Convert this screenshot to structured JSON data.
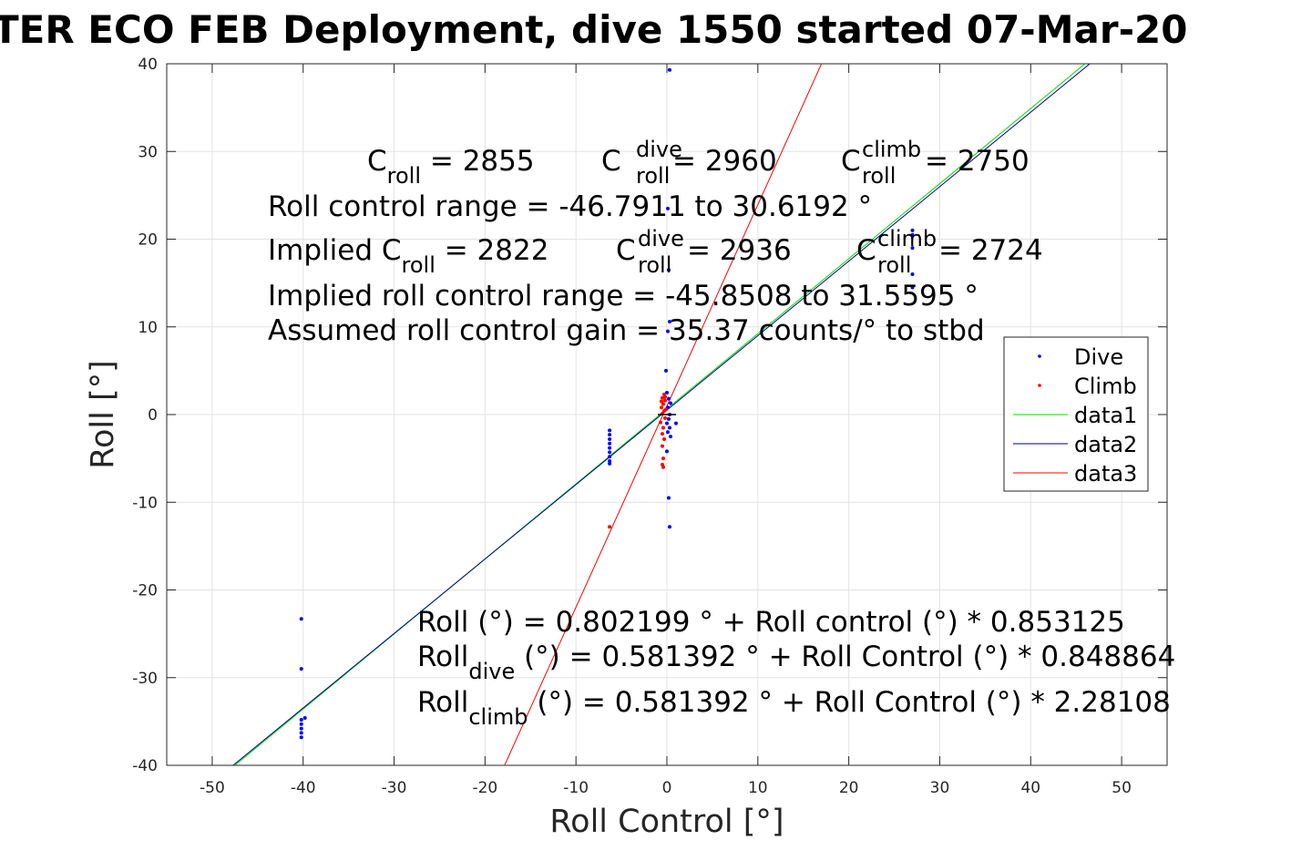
{
  "chart_data": {
    "type": "scatter",
    "title": "TER ECO FEB Deployment, dive 1550 started 07-Mar-20",
    "xlabel": "Roll Control [°]",
    "ylabel": "Roll [°]",
    "xlim": [
      -55,
      55
    ],
    "ylim": [
      -40,
      40
    ],
    "xticks": [
      -50,
      -40,
      -30,
      -20,
      -10,
      0,
      10,
      20,
      30,
      40,
      50
    ],
    "yticks": [
      -40,
      -30,
      -20,
      -10,
      0,
      10,
      20,
      30,
      40
    ],
    "grid": true,
    "legend_position": "right",
    "series": [
      {
        "name": "Dive",
        "kind": "points",
        "color": "#0000ff",
        "points": [
          [
            0.3,
            39.3
          ],
          [
            0.1,
            23.5
          ],
          [
            0.2,
            16.5
          ],
          [
            0.3,
            10.6
          ],
          [
            0.1,
            9.5
          ],
          [
            -0.1,
            5.0
          ],
          [
            0.0,
            2.5
          ],
          [
            0.2,
            1.8
          ],
          [
            0.4,
            1.3
          ],
          [
            0.1,
            0.8
          ],
          [
            0.3,
            0.0
          ],
          [
            0.2,
            -0.5
          ],
          [
            0.0,
            -1.0
          ],
          [
            0.3,
            -1.5
          ],
          [
            0.1,
            -2.0
          ],
          [
            0.4,
            -2.5
          ],
          [
            1.0,
            -1.0
          ],
          [
            0.0,
            -4.2
          ],
          [
            0.2,
            -9.5
          ],
          [
            0.3,
            -12.8
          ],
          [
            -6.3,
            -1.8
          ],
          [
            -6.3,
            -2.3
          ],
          [
            -6.3,
            -2.8
          ],
          [
            -6.3,
            -3.3
          ],
          [
            -6.3,
            -3.8
          ],
          [
            -6.3,
            -4.3
          ],
          [
            -6.3,
            -4.8
          ],
          [
            -6.3,
            -5.3
          ],
          [
            -6.3,
            -5.6
          ],
          [
            27.0,
            21.0
          ],
          [
            27.0,
            20.5
          ],
          [
            27.0,
            19.0
          ],
          [
            27.0,
            16.0
          ],
          [
            27.0,
            14.5
          ],
          [
            -40.2,
            -23.3
          ],
          [
            -40.2,
            -29.0
          ],
          [
            -40.2,
            -34.8
          ],
          [
            -40.2,
            -35.3
          ],
          [
            -40.2,
            -35.8
          ],
          [
            -40.2,
            -36.3
          ],
          [
            -40.2,
            -36.8
          ],
          [
            -39.8,
            -34.6
          ]
        ]
      },
      {
        "name": "Climb",
        "kind": "points",
        "color": "#ff0000",
        "points": [
          [
            -0.3,
            2.3
          ],
          [
            -0.5,
            1.9
          ],
          [
            -0.2,
            1.6
          ],
          [
            -0.4,
            1.2
          ],
          [
            -0.6,
            0.8
          ],
          [
            -0.3,
            0.4
          ],
          [
            -0.5,
            0.1
          ],
          [
            -0.2,
            -0.4
          ],
          [
            -0.7,
            -0.9
          ],
          [
            -0.4,
            -1.5
          ],
          [
            -0.5,
            -2.2
          ],
          [
            -0.3,
            -2.8
          ],
          [
            -0.5,
            -3.6
          ],
          [
            -0.4,
            -5.0
          ],
          [
            -0.5,
            -5.7
          ],
          [
            -0.4,
            -6.0
          ],
          [
            -6.3,
            -12.8
          ],
          [
            -0.2,
            2.0
          ],
          [
            -0.6,
            1.5
          ],
          [
            -0.1,
            0.6
          ]
        ]
      },
      {
        "name": "data1",
        "kind": "line",
        "color": "#00dd00",
        "x": [
          -47.5,
          46.2
        ],
        "y": [
          -40.0,
          40.2
        ]
      },
      {
        "name": "data2",
        "kind": "line",
        "color": "#00008b",
        "x": [
          -47.7,
          46.5
        ],
        "y": [
          -40.0,
          40.0
        ]
      },
      {
        "name": "data3",
        "kind": "line",
        "color": "#ff0000",
        "x": [
          -18.2,
          17.0
        ],
        "y": [
          -40.8,
          40.0
        ]
      }
    ],
    "annotations_top": {
      "croll": {
        "main": "C",
        "sub": "roll",
        "value": " = 2855"
      },
      "croll_dive": {
        "main": "C",
        "sub": "roll",
        "sup": "dive",
        "value": " = 2960"
      },
      "croll_climb": {
        "main": "C",
        "sub": "roll",
        "sup": "climb",
        "value": " = 2750"
      },
      "range": "Roll control range = -46.7911 to 30.6192 °",
      "implied_prefix": "Implied C",
      "implied_sub": "roll",
      "implied_value": " = 2822",
      "implied_dive": {
        "main": "C",
        "sub": "roll",
        "sup": "dive",
        "value": " = 2936"
      },
      "implied_climb": {
        "main": "C",
        "sub": "roll",
        "sup": "climb",
        "value": " = 2724"
      },
      "implied_range": "Implied roll control range = -45.8508 to 31.5595 °",
      "gain": "Assumed roll control gain = 35.37 counts/° to stbd"
    },
    "annotations_bottom": {
      "fit": "Roll (°) = 0.802199 ° + Roll control (°) * 0.853125",
      "fit_dive_main": "Roll",
      "fit_dive_sub": "dive",
      "fit_dive_rest": " (°) = 0.581392 ° + Roll Control (°) * 0.848864",
      "fit_climb_main": "Roll",
      "fit_climb_sub": "climb",
      "fit_climb_rest": " (°) = 0.581392 ° + Roll Control (°) * 2.28108"
    }
  }
}
